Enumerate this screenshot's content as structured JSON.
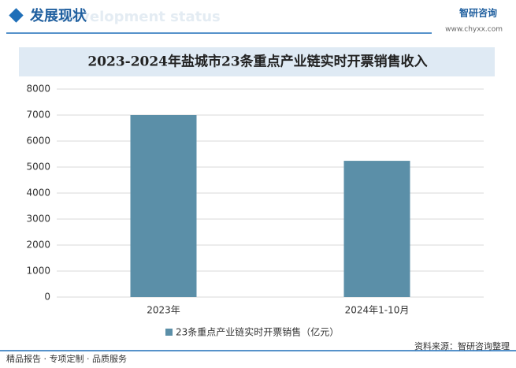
{
  "header": {
    "title": "发展现状",
    "subtitle": "Development status",
    "brand": "智研咨询",
    "url": "www.chyxx.com"
  },
  "chart_data": {
    "type": "bar",
    "title": "2023-2024年盐城市23条重点产业链实时开票销售收入",
    "categories": [
      "2023年",
      "2024年1-10月"
    ],
    "series": [
      {
        "name": "23条重点产业链实时开票销售（亿元）",
        "color": "#5b8fa8",
        "values": [
          7000,
          5240
        ]
      }
    ],
    "ylim": [
      0,
      8000
    ],
    "yticks": [
      0,
      1000,
      2000,
      3000,
      4000,
      5000,
      6000,
      7000,
      8000
    ],
    "grid": true,
    "legend": "bottom"
  },
  "footer": {
    "left": "精品报告 · 专项定制 · 品质服务",
    "right": "资料来源：智研咨询整理"
  }
}
